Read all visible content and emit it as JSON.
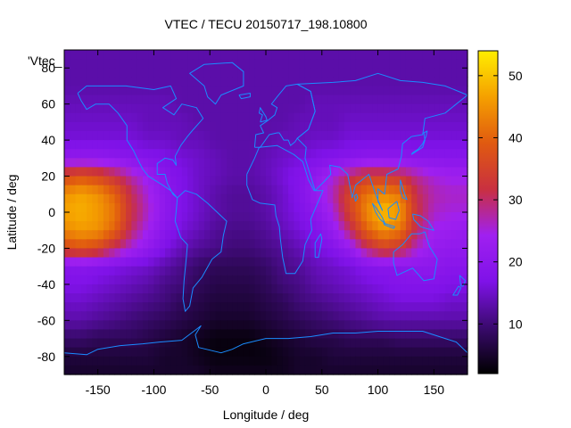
{
  "chart_data": {
    "type": "heatmap",
    "title": "VTEC / TECU 20150717_198.10800",
    "xlabel": "Longitude / deg",
    "ylabel": "Latitude / deg",
    "key_label": "'Vtec_",
    "xlim": [
      -180,
      180
    ],
    "ylim": [
      -90,
      90
    ],
    "x_ticks": [
      -150,
      -100,
      -50,
      0,
      50,
      100,
      150
    ],
    "y_ticks": [
      -80,
      -60,
      -40,
      -20,
      0,
      20,
      40,
      60,
      80
    ],
    "colorbar": {
      "range": [
        2,
        54
      ],
      "ticks": [
        10,
        20,
        30,
        40,
        50
      ]
    },
    "colormap": [
      "#000000",
      "#3a0a6e",
      "#7f12e8",
      "#a020f0",
      "#c93040",
      "#e05a10",
      "#f5a000",
      "#ffee00"
    ],
    "land_outline_color": "#1a8cff",
    "grid": false,
    "lon": [
      -180,
      -165,
      -150,
      -135,
      -120,
      -105,
      -90,
      -75,
      -60,
      -45,
      -30,
      -15,
      0,
      15,
      30,
      45,
      60,
      75,
      90,
      105,
      120,
      135,
      150,
      165,
      180
    ],
    "lat": [
      -90,
      -80,
      -70,
      -60,
      -50,
      -40,
      -30,
      -20,
      -10,
      0,
      10,
      20,
      30,
      40,
      50,
      60,
      70,
      80,
      90
    ],
    "values": [
      [
        5,
        5,
        5,
        5,
        5,
        5,
        5,
        5,
        5,
        4,
        4,
        4,
        4,
        4,
        5,
        5,
        5,
        5,
        5,
        5,
        5,
        5,
        5,
        5,
        5
      ],
      [
        6,
        6,
        6,
        6,
        6,
        6,
        5,
        5,
        4,
        3,
        3,
        3,
        3,
        4,
        5,
        5,
        6,
        6,
        6,
        6,
        6,
        6,
        6,
        6,
        6
      ],
      [
        9,
        9,
        8,
        8,
        8,
        7,
        6,
        5,
        4,
        3,
        3,
        3,
        4,
        5,
        6,
        7,
        7,
        8,
        8,
        8,
        9,
        9,
        9,
        9,
        9
      ],
      [
        13,
        13,
        12,
        11,
        10,
        9,
        8,
        7,
        6,
        5,
        5,
        5,
        6,
        7,
        8,
        9,
        10,
        11,
        12,
        13,
        13,
        13,
        13,
        13,
        13
      ],
      [
        15,
        15,
        14,
        13,
        12,
        11,
        10,
        8,
        7,
        6,
        6,
        6,
        7,
        8,
        10,
        11,
        12,
        13,
        14,
        15,
        16,
        16,
        16,
        15,
        15
      ],
      [
        17,
        17,
        16,
        15,
        14,
        13,
        11,
        10,
        8,
        7,
        7,
        7,
        8,
        10,
        11,
        13,
        14,
        15,
        16,
        17,
        18,
        18,
        18,
        17,
        17
      ],
      [
        19,
        19,
        18,
        17,
        16,
        15,
        13,
        11,
        9,
        8,
        8,
        8,
        9,
        11,
        12,
        14,
        15,
        16,
        18,
        19,
        19,
        20,
        20,
        19,
        19
      ],
      [
        36,
        38,
        36,
        30,
        25,
        21,
        17,
        14,
        12,
        11,
        10,
        10,
        11,
        12,
        14,
        16,
        18,
        22,
        30,
        35,
        33,
        26,
        22,
        21,
        21
      ],
      [
        44,
        46,
        45,
        40,
        30,
        24,
        19,
        16,
        14,
        12,
        11,
        11,
        12,
        14,
        16,
        18,
        22,
        30,
        40,
        45,
        42,
        30,
        24,
        23,
        22
      ],
      [
        47,
        48,
        46,
        42,
        32,
        26,
        20,
        17,
        15,
        13,
        12,
        12,
        13,
        15,
        17,
        20,
        25,
        35,
        44,
        50,
        46,
        32,
        26,
        25,
        25
      ],
      [
        45,
        47,
        45,
        40,
        31,
        25,
        20,
        17,
        15,
        13,
        12,
        12,
        13,
        15,
        18,
        22,
        27,
        36,
        42,
        44,
        42,
        31,
        27,
        26,
        26
      ],
      [
        36,
        38,
        36,
        32,
        27,
        23,
        19,
        17,
        15,
        14,
        13,
        13,
        14,
        16,
        18,
        21,
        25,
        30,
        34,
        34,
        32,
        28,
        25,
        24,
        24
      ],
      [
        21,
        21,
        21,
        20,
        19,
        18,
        17,
        16,
        15,
        14,
        13,
        13,
        14,
        15,
        16,
        17,
        18,
        19,
        20,
        20,
        20,
        19,
        19,
        19,
        19
      ],
      [
        16,
        16,
        16,
        16,
        16,
        15,
        15,
        14,
        14,
        13,
        13,
        13,
        13,
        14,
        14,
        15,
        15,
        16,
        16,
        16,
        16,
        16,
        16,
        16,
        16
      ],
      [
        15,
        15,
        15,
        15,
        15,
        14,
        14,
        14,
        13,
        13,
        13,
        13,
        13,
        13,
        14,
        14,
        14,
        15,
        15,
        15,
        15,
        15,
        15,
        15,
        15
      ],
      [
        14,
        14,
        14,
        14,
        14,
        14,
        14,
        13,
        13,
        13,
        13,
        13,
        13,
        13,
        13,
        14,
        14,
        14,
        14,
        14,
        14,
        14,
        14,
        14,
        14
      ],
      [
        13,
        13,
        13,
        13,
        13,
        13,
        13,
        13,
        13,
        13,
        13,
        13,
        13,
        13,
        13,
        13,
        13,
        13,
        13,
        13,
        13,
        13,
        13,
        13,
        13
      ],
      [
        13,
        13,
        13,
        13,
        13,
        13,
        13,
        13,
        13,
        13,
        13,
        13,
        13,
        13,
        13,
        13,
        13,
        13,
        13,
        13,
        13,
        13,
        13,
        13,
        13
      ],
      [
        13,
        13,
        13,
        13,
        13,
        13,
        13,
        13,
        13,
        13,
        13,
        13,
        13,
        13,
        13,
        13,
        13,
        13,
        13,
        13,
        13,
        13,
        13,
        13,
        13
      ]
    ]
  }
}
